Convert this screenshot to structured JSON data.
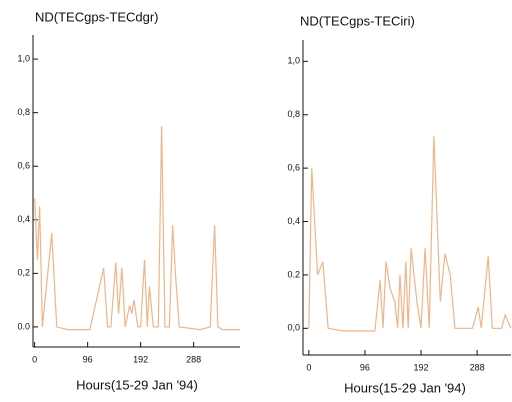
{
  "chart_data": [
    {
      "type": "line",
      "title": "ND(TECgps-TECdgr)",
      "x_label": "Hours(15-29 Jan '94)",
      "x": [
        0,
        5,
        9,
        14,
        31,
        40,
        60,
        100,
        125,
        132,
        138,
        147,
        152,
        158,
        164,
        172,
        176,
        180,
        187,
        192,
        199,
        204,
        208,
        215,
        224,
        230,
        236,
        244,
        250,
        255,
        262,
        300,
        318,
        326,
        332,
        340,
        372
      ],
      "series": [
        {
          "name": "ND",
          "color": "#f0b488",
          "values": [
            0.48,
            0.25,
            0.45,
            0.0,
            0.35,
            0.0,
            -0.01,
            -0.01,
            0.22,
            0.0,
            0.0,
            0.24,
            0.05,
            0.22,
            0.0,
            0.08,
            0.05,
            0.1,
            0.0,
            0.0,
            0.25,
            0.0,
            0.15,
            0.0,
            0.0,
            0.75,
            0.0,
            0.0,
            0.38,
            0.2,
            0.0,
            -0.01,
            0.0,
            0.38,
            0.0,
            -0.01,
            -0.01
          ]
        }
      ],
      "xlim": [
        -3,
        372
      ],
      "ylim": [
        -0.075,
        1.09
      ],
      "xticks": [
        0,
        96,
        192,
        288
      ],
      "yticks": [
        {
          "value": 0,
          "label": "0.0"
        },
        {
          "value": 0.2,
          "label": "0,2"
        },
        {
          "value": 0.4,
          "label": "0,4"
        },
        {
          "value": 0.6,
          "label": "0,6"
        },
        {
          "value": 0.8,
          "label": "0,8"
        },
        {
          "value": 1.0,
          "label": "1,0"
        }
      ]
    },
    {
      "type": "line",
      "title": "ND(TECgps-TECiri)",
      "x_label": "Hours(15-29 Jan '94)",
      "x": [
        0,
        5,
        15,
        24,
        33,
        60,
        113,
        122,
        127,
        132,
        139,
        147,
        152,
        156,
        161,
        166,
        170,
        175,
        185,
        192,
        199,
        206,
        214,
        225,
        233,
        242,
        250,
        280,
        290,
        295,
        307,
        314,
        330,
        336,
        346
      ],
      "series": [
        {
          "name": "ND",
          "color": "#f0b488",
          "values": [
            0.0,
            0.6,
            0.2,
            0.25,
            0.0,
            -0.01,
            -0.01,
            0.18,
            0.0,
            0.25,
            0.15,
            0.1,
            0.0,
            0.2,
            0.0,
            0.25,
            0.0,
            0.3,
            0.1,
            0.0,
            0.3,
            0.0,
            0.72,
            0.1,
            0.28,
            0.2,
            0.0,
            0.0,
            0.08,
            0.0,
            0.27,
            0.0,
            0.0,
            0.05,
            0.0
          ]
        }
      ],
      "xlim": [
        -10,
        346
      ],
      "ylim": [
        -0.1,
        1.08
      ],
      "xticks": [
        0,
        96,
        192,
        288
      ],
      "yticks": [
        {
          "value": 0,
          "label": "0,0"
        },
        {
          "value": 0.2,
          "label": "0.2"
        },
        {
          "value": 0.4,
          "label": "0,4"
        },
        {
          "value": 0.6,
          "label": "0,6"
        },
        {
          "value": 0.8,
          "label": "0,8"
        },
        {
          "value": 1.0,
          "label": "1,0"
        }
      ]
    }
  ]
}
